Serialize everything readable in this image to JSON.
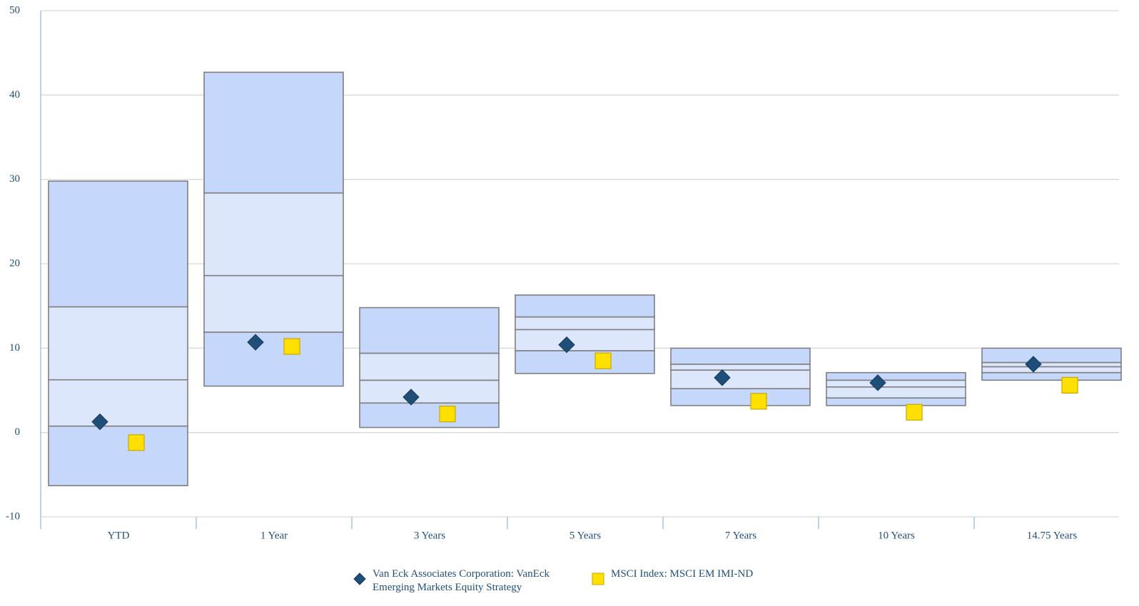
{
  "chart_data": {
    "type": "floating-box",
    "categories": [
      "YTD",
      "1 Year",
      "3 Years",
      "5 Years",
      "7 Years",
      "10 Years",
      "14.75 Years"
    ],
    "boxes": [
      [
        -6.3,
        0.76,
        6.25,
        14.9,
        29.8
      ],
      [
        5.5,
        11.9,
        18.6,
        28.4,
        42.7
      ],
      [
        0.6,
        3.5,
        6.2,
        9.4,
        14.8
      ],
      [
        7.0,
        9.7,
        12.2,
        13.7,
        16.3
      ],
      [
        3.2,
        5.2,
        7.4,
        8.1,
        10.0
      ],
      [
        3.2,
        4.1,
        5.4,
        6.2,
        7.1
      ],
      [
        6.2,
        7.1,
        7.8,
        8.3,
        10.0
      ]
    ],
    "box_colors": [
      "#c5d7fb",
      "#dde7fc",
      "#dde7fc",
      "#c5d7fb"
    ],
    "series": [
      {
        "name": "Van Eck Associates Corporation: VanEck Emerging Markets Equity Strategy",
        "color": "#1f4e79",
        "marker": "diamond",
        "values": [
          1.27,
          10.7,
          4.2,
          10.4,
          6.5,
          5.9,
          8.1
        ]
      },
      {
        "name": "MSCI Index: MSCI EM IMI-ND",
        "color": "#ffe000",
        "marker": "square",
        "values": [
          -1.2,
          10.2,
          2.2,
          8.5,
          3.7,
          2.4,
          5.6
        ]
      }
    ],
    "ylim": [
      -10,
      50
    ],
    "yticks": [
      -10,
      0,
      10,
      20,
      30,
      40,
      50
    ],
    "grid": true
  }
}
